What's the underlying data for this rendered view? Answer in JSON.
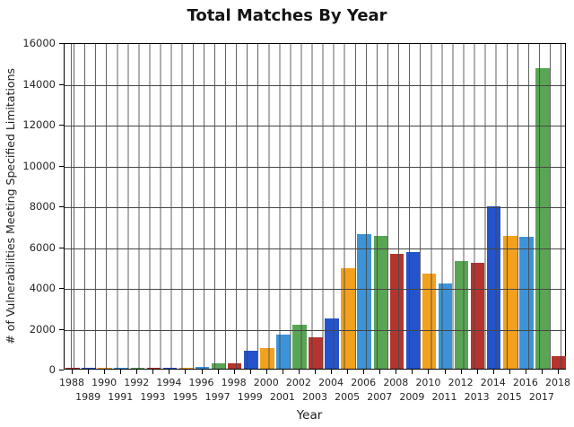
{
  "chart_data": {
    "type": "bar",
    "title": "Total Matches By Year",
    "xlabel": "Year",
    "ylabel": "# of Vulnerabilities Meeting Specified Limitations",
    "categories": [
      "1988",
      "1989",
      "1990",
      "1991",
      "1992",
      "1993",
      "1994",
      "1995",
      "1996",
      "1997",
      "1998",
      "1999",
      "2000",
      "2001",
      "2002",
      "2003",
      "2004",
      "2005",
      "2006",
      "2007",
      "2008",
      "2009",
      "2010",
      "2011",
      "2012",
      "2013",
      "2014",
      "2015",
      "2016",
      "2017",
      "2018"
    ],
    "values": [
      2,
      3,
      11,
      15,
      13,
      13,
      25,
      25,
      75,
      252,
      246,
      894,
      1020,
      1677,
      2156,
      1527,
      2451,
      4935,
      6610,
      6520,
      5632,
      5736,
      4653,
      4155,
      5297,
      5191,
      7939,
      6504,
      6447,
      14714,
      600
    ],
    "ylim": [
      0,
      16000
    ],
    "ytick_step": 2000,
    "ytick_labels": [
      "0",
      "2000",
      "4000",
      "6000",
      "8000",
      "10000",
      "12000",
      "14000",
      "16000"
    ],
    "grid": true,
    "legend": null,
    "palette": [
      "#2453cb",
      "#f2a11e",
      "#3d93d7",
      "#5aa555",
      "#b5342e"
    ],
    "palette_start_index": 4,
    "xtick_label_rows": "even years on upper row, odd years on lower row"
  }
}
